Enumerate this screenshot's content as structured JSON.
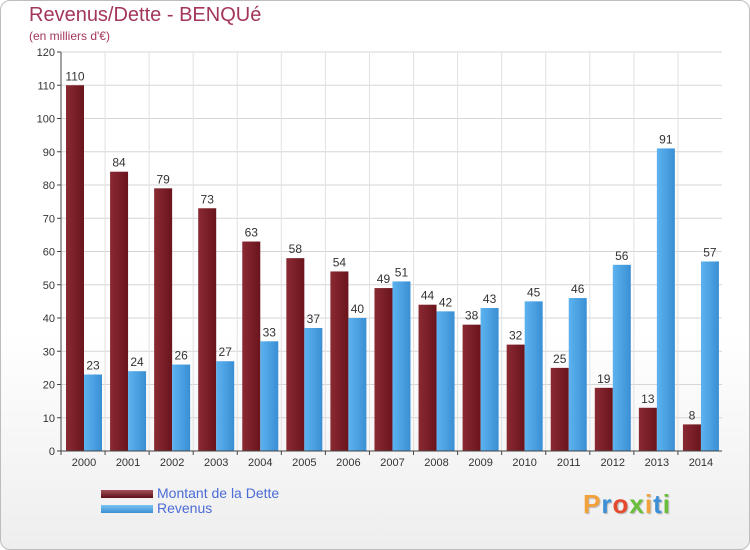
{
  "chart_data": {
    "type": "bar",
    "title": "Revenus/Dette - BENQUé",
    "subtitle": "(en milliers d'€)",
    "categories": [
      "2000",
      "2001",
      "2002",
      "2003",
      "2004",
      "2005",
      "2006",
      "2007",
      "2008",
      "2009",
      "2010",
      "2011",
      "2012",
      "2013",
      "2014"
    ],
    "series": [
      {
        "name": "Montant de la Dette",
        "color": "#7a1e28",
        "values": [
          110,
          84,
          79,
          73,
          63,
          58,
          54,
          49,
          44,
          38,
          32,
          25,
          19,
          13,
          8
        ]
      },
      {
        "name": "Revenus",
        "color": "#4aa3e6",
        "values": [
          23,
          24,
          26,
          27,
          33,
          37,
          40,
          51,
          42,
          43,
          45,
          46,
          56,
          91,
          57
        ]
      }
    ],
    "ylim": [
      0,
      120
    ],
    "yticks": [
      0,
      10,
      20,
      30,
      40,
      50,
      60,
      70,
      80,
      90,
      100,
      110,
      120
    ],
    "grid": true,
    "legend_position": "bottom-left"
  },
  "brand": {
    "letters": [
      "P",
      "r",
      "o",
      "x",
      "i",
      "t",
      "i"
    ],
    "colors": [
      "#f2a23a",
      "#3b8fd6",
      "#e64a2e",
      "#6abf3a",
      "#f2a23a",
      "#3b8fd6",
      "#6abf3a"
    ]
  }
}
